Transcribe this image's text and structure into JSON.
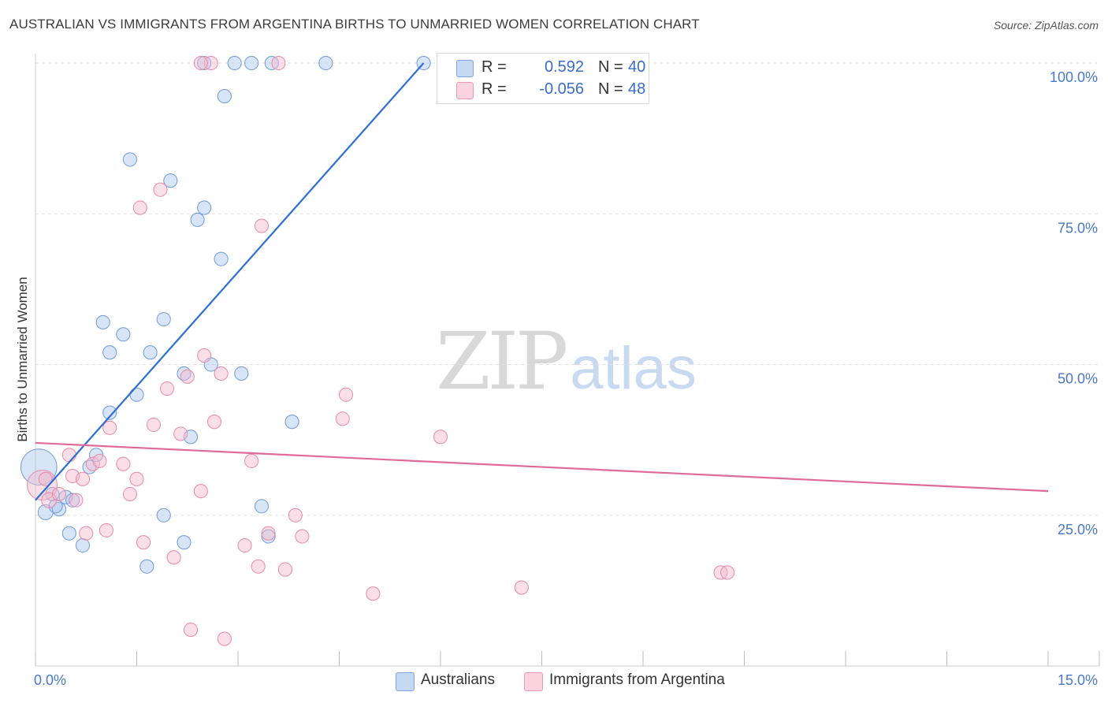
{
  "title": "AUSTRALIAN VS IMMIGRANTS FROM ARGENTINA BIRTHS TO UNMARRIED WOMEN CORRELATION CHART",
  "source": "Source: ZipAtlas.com",
  "watermark": {
    "zip": "ZIP",
    "atlas": "atlas"
  },
  "legend_top": {
    "rows": [
      {
        "r_label": "R =",
        "r_value": "0.592",
        "n_label": "N =",
        "n_value": "40",
        "color": "#a9c6ee"
      },
      {
        "r_label": "R =",
        "r_value": "-0.056",
        "n_label": "N =",
        "n_value": "48",
        "color": "#f5b8cb"
      }
    ]
  },
  "legend_bottom": {
    "items": [
      {
        "label": "Australians",
        "color": "#a9c6ee"
      },
      {
        "label": "Immigrants from Argentina",
        "color": "#f5b8cb"
      }
    ]
  },
  "chart_data": {
    "type": "scatter",
    "title": "AUSTRALIAN VS IMMIGRANTS FROM ARGENTINA BIRTHS TO UNMARRIED WOMEN CORRELATION CHART",
    "xlabel": "",
    "ylabel": "Births to Unmarried Women",
    "xlim": [
      0,
      15
    ],
    "ylim": [
      0,
      100
    ],
    "x_tick_labels": [
      "0.0%",
      "15.0%"
    ],
    "y_tick_labels": [
      {
        "value": 25,
        "label": "25.0%"
      },
      {
        "value": 50,
        "label": "50.0%"
      },
      {
        "value": 75,
        "label": "75.0%"
      },
      {
        "value": 100,
        "label": "100.0%"
      }
    ],
    "grid": true,
    "series": [
      {
        "name": "Australians",
        "color": "#a9c6ee",
        "stroke": "#6f9ad8",
        "trend_color": "#2f6fd0",
        "trend": {
          "x0": 0.0,
          "y0": 27.5,
          "x1": 5.75,
          "y1": 100.0
        },
        "points": [
          [
            0.05,
            33,
            24
          ],
          [
            0.15,
            25.5,
            10
          ],
          [
            0.25,
            28.5,
            9
          ],
          [
            0.35,
            26,
            9
          ],
          [
            0.45,
            28,
            9
          ],
          [
            0.55,
            27.5,
            9
          ],
          [
            0.5,
            22,
            9
          ],
          [
            0.7,
            20,
            9
          ],
          [
            0.8,
            33,
            9
          ],
          [
            0.9,
            35,
            9
          ],
          [
            1.1,
            42,
            9
          ],
          [
            1.0,
            57,
            9
          ],
          [
            1.1,
            52,
            9
          ],
          [
            1.3,
            55,
            9
          ],
          [
            1.5,
            45,
            9
          ],
          [
            1.4,
            84,
            9
          ],
          [
            1.7,
            52,
            9
          ],
          [
            1.9,
            57.5,
            9
          ],
          [
            1.9,
            25,
            9
          ],
          [
            1.65,
            16.5,
            9
          ],
          [
            2.0,
            80.5,
            9
          ],
          [
            2.2,
            20.5,
            9
          ],
          [
            2.2,
            48.5,
            9
          ],
          [
            2.3,
            38,
            9
          ],
          [
            2.4,
            74,
            9
          ],
          [
            2.5,
            76,
            9
          ],
          [
            2.6,
            50,
            9
          ],
          [
            2.75,
            67.5,
            9
          ],
          [
            2.8,
            94.5,
            9
          ],
          [
            2.95,
            100,
            9
          ],
          [
            3.2,
            100,
            9
          ],
          [
            3.5,
            100,
            9
          ],
          [
            3.05,
            48.5,
            9
          ],
          [
            3.35,
            26.5,
            9
          ],
          [
            3.45,
            21.5,
            9
          ],
          [
            3.8,
            40.5,
            9
          ],
          [
            4.3,
            100,
            9
          ],
          [
            5.75,
            100,
            9
          ],
          [
            2.5,
            100,
            9
          ],
          [
            0.3,
            26.5,
            9
          ]
        ]
      },
      {
        "name": "Immigrants from Argentina",
        "color": "#f5b8cb",
        "stroke": "#e68aa8",
        "trend_color": "#e06a98",
        "trend": {
          "x0": 0.0,
          "y0": 37.0,
          "x1": 15.0,
          "y1": 29.0
        },
        "points": [
          [
            0.1,
            30,
            20
          ],
          [
            0.2,
            27.5,
            10
          ],
          [
            0.35,
            28.5,
            9
          ],
          [
            0.5,
            35,
            9
          ],
          [
            0.55,
            31.5,
            9
          ],
          [
            0.7,
            31,
            9
          ],
          [
            0.75,
            22,
            9
          ],
          [
            0.85,
            33.5,
            9
          ],
          [
            0.95,
            34,
            9
          ],
          [
            1.05,
            22.5,
            9
          ],
          [
            1.1,
            39.5,
            9
          ],
          [
            1.3,
            33.5,
            9
          ],
          [
            1.4,
            28.5,
            9
          ],
          [
            1.5,
            31,
            9
          ],
          [
            1.55,
            76,
            9
          ],
          [
            1.6,
            20.5,
            9
          ],
          [
            1.75,
            40,
            9
          ],
          [
            1.85,
            79,
            9
          ],
          [
            1.95,
            46,
            9
          ],
          [
            2.05,
            18,
            9
          ],
          [
            2.15,
            38.5,
            9
          ],
          [
            2.25,
            48,
            9
          ],
          [
            2.3,
            6,
            9
          ],
          [
            2.45,
            29,
            9
          ],
          [
            2.5,
            51.5,
            9
          ],
          [
            2.6,
            100,
            9
          ],
          [
            2.65,
            40.5,
            9
          ],
          [
            2.75,
            48.5,
            9
          ],
          [
            2.8,
            4.5,
            9
          ],
          [
            3.1,
            20,
            9
          ],
          [
            3.2,
            34,
            9
          ],
          [
            3.3,
            16.5,
            9
          ],
          [
            3.35,
            73,
            9
          ],
          [
            3.45,
            22,
            9
          ],
          [
            3.6,
            100,
            9
          ],
          [
            3.7,
            16,
            9
          ],
          [
            3.85,
            25,
            9
          ],
          [
            3.95,
            21.5,
            9
          ],
          [
            4.55,
            41,
            9
          ],
          [
            4.6,
            45,
            9
          ],
          [
            5.0,
            12,
            9
          ],
          [
            6.0,
            38,
            9
          ],
          [
            7.2,
            13,
            9
          ],
          [
            10.15,
            15.5,
            9
          ],
          [
            10.25,
            15.5,
            9
          ],
          [
            0.15,
            31,
            9
          ],
          [
            0.6,
            27.5,
            9
          ],
          [
            2.45,
            100,
            9
          ]
        ]
      }
    ]
  }
}
